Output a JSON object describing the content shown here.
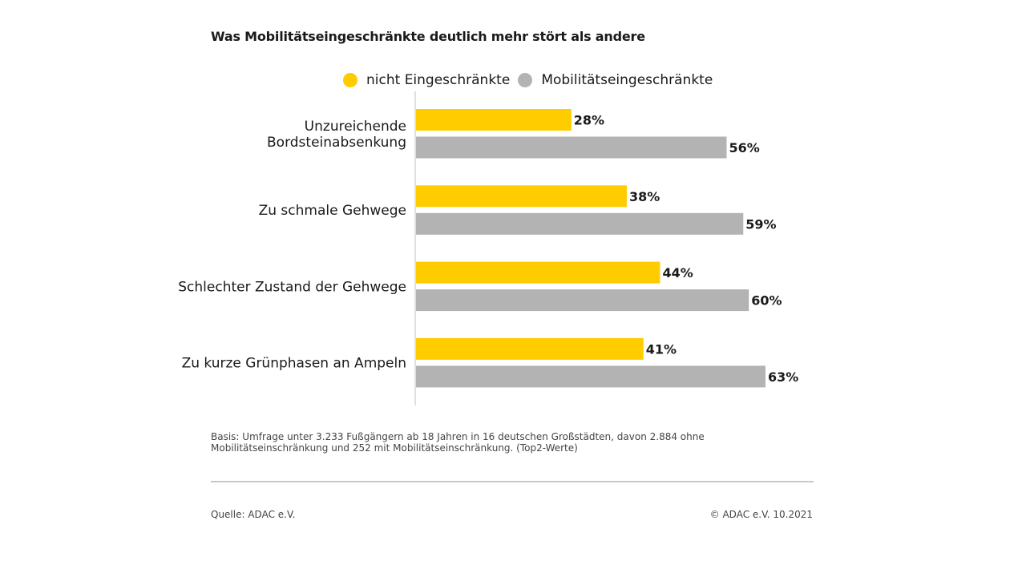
{
  "title": "Was Mobilitätseingeschränkte deutlich mehr stört als andere",
  "legend": [
    {
      "label": "nicht Eingeschränkte",
      "color": "#FFCC00"
    },
    {
      "label": "Mobilitätseingeschränkte",
      "color": "#B3B3B3"
    }
  ],
  "chart_data": {
    "type": "bar",
    "orientation": "horizontal",
    "title": "Was Mobilitätseingeschränkte deutlich mehr stört als andere",
    "categories": [
      [
        "Unzureichende",
        "Bordsteinabsenkung"
      ],
      [
        "Zu schmale Gehwege"
      ],
      [
        "Schlechter Zustand der Gehwege"
      ],
      [
        "Zu kurze Grünphasen an Ampeln"
      ]
    ],
    "series": [
      {
        "name": "nicht Eingeschränkte",
        "color": "#FFCC00",
        "values": [
          28,
          38,
          44,
          41
        ],
        "labels": [
          "28%",
          "38%",
          "44%",
          "41%"
        ]
      },
      {
        "name": "Mobilitätseingeschränkte",
        "color": "#B3B3B3",
        "values": [
          56,
          59,
          60,
          63
        ],
        "labels": [
          "56%",
          "59%",
          "60%",
          "63%"
        ]
      }
    ],
    "xlim": [
      0,
      100
    ],
    "grid": false,
    "legend_position": "top"
  },
  "basis": "Basis: Umfrage unter 3.233 Fußgängern ab 18 Jahren in 16 deutschen Großstädten, davon 2.884 ohne Mobilitätseinschränkung und 252 mit Mobilitätseinschränkung. (Top2-Werte)",
  "source": "Quelle: ADAC e.V.",
  "copyright": "© ADAC e.V. 10.2021"
}
